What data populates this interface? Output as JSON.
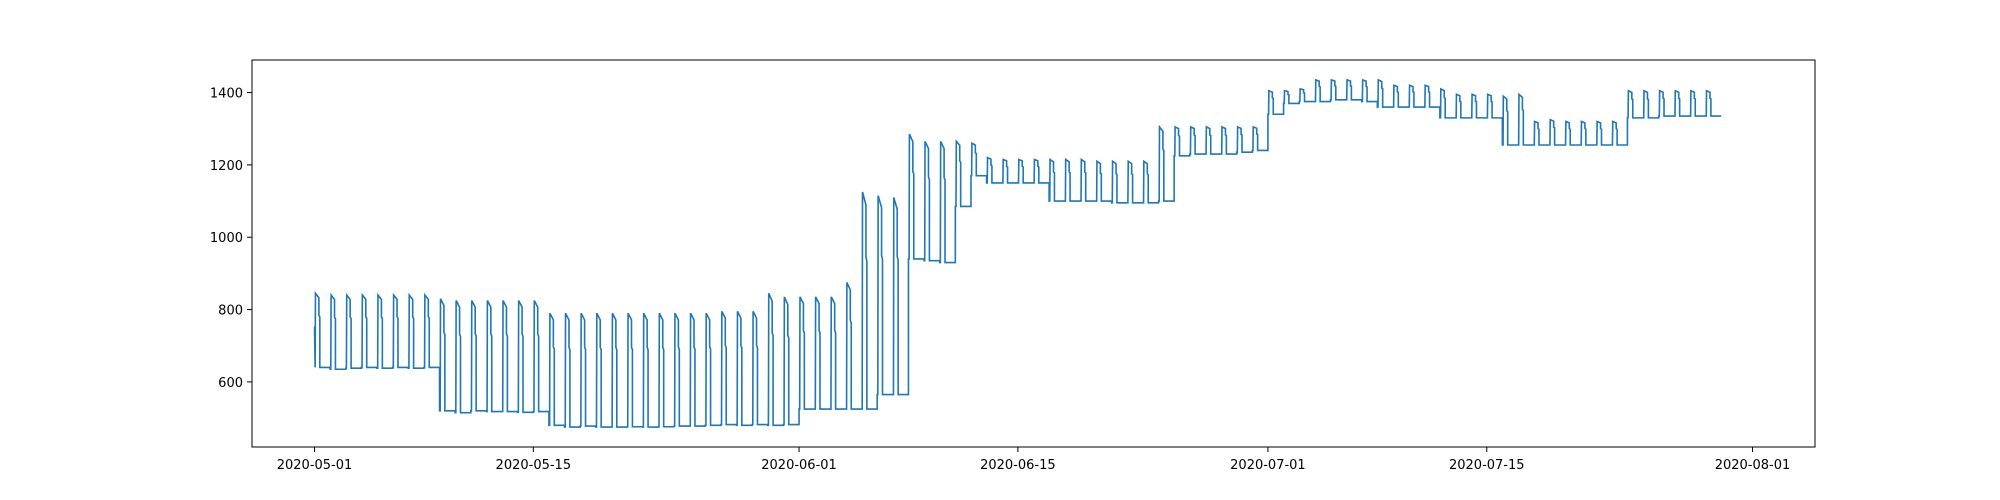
{
  "chart_data": {
    "type": "line",
    "title": "",
    "xlabel": "",
    "ylabel": "",
    "grid": false,
    "legend": "none",
    "xlim": [
      "2020-04-27",
      "2020-08-05"
    ],
    "ylim": [
      420,
      1490
    ],
    "x_ticks": [
      "2020-05-01",
      "2020-05-15",
      "2020-06-01",
      "2020-06-15",
      "2020-07-01",
      "2020-07-15",
      "2020-08-01"
    ],
    "y_ticks": [
      600,
      800,
      1000,
      1200,
      1400
    ],
    "series": [
      {
        "color": "#1f77b4",
        "x": [
          "2020-05-01",
          "2020-05-02",
          "2020-05-03",
          "2020-05-04",
          "2020-05-05",
          "2020-05-06",
          "2020-05-07",
          "2020-05-08",
          "2020-05-09",
          "2020-05-10",
          "2020-05-11",
          "2020-05-12",
          "2020-05-13",
          "2020-05-14",
          "2020-05-15",
          "2020-05-16",
          "2020-05-17",
          "2020-05-18",
          "2020-05-19",
          "2020-05-20",
          "2020-05-21",
          "2020-05-22",
          "2020-05-23",
          "2020-05-24",
          "2020-05-25",
          "2020-05-26",
          "2020-05-27",
          "2020-05-28",
          "2020-05-29",
          "2020-05-30",
          "2020-05-31",
          "2020-06-01",
          "2020-06-02",
          "2020-06-03",
          "2020-06-04",
          "2020-06-05",
          "2020-06-06",
          "2020-06-07",
          "2020-06-08",
          "2020-06-09",
          "2020-06-10",
          "2020-06-11",
          "2020-06-12",
          "2020-06-13",
          "2020-06-14",
          "2020-06-15",
          "2020-06-16",
          "2020-06-17",
          "2020-06-18",
          "2020-06-19",
          "2020-06-20",
          "2020-06-21",
          "2020-06-22",
          "2020-06-23",
          "2020-06-24",
          "2020-06-25",
          "2020-06-26",
          "2020-06-27",
          "2020-06-28",
          "2020-06-29",
          "2020-06-30",
          "2020-07-01",
          "2020-07-02",
          "2020-07-03",
          "2020-07-04",
          "2020-07-05",
          "2020-07-06",
          "2020-07-07",
          "2020-07-08",
          "2020-07-09",
          "2020-07-10",
          "2020-07-11",
          "2020-07-12",
          "2020-07-13",
          "2020-07-14",
          "2020-07-15",
          "2020-07-16",
          "2020-07-17",
          "2020-07-18",
          "2020-07-19",
          "2020-07-20",
          "2020-07-21",
          "2020-07-22",
          "2020-07-23",
          "2020-07-24",
          "2020-07-25",
          "2020-07-26",
          "2020-07-27",
          "2020-07-28",
          "2020-07-29"
        ],
        "low": [
          640,
          635,
          638,
          640,
          638,
          640,
          638,
          640,
          520,
          515,
          520,
          518,
          518,
          516,
          518,
          480,
          475,
          478,
          475,
          475,
          476,
          475,
          476,
          478,
          478,
          480,
          482,
          480,
          482,
          480,
          482,
          525,
          525,
          525,
          525,
          525,
          565,
          565,
          940,
          935,
          930,
          1085,
          1170,
          1150,
          1150,
          1150,
          1150,
          1100,
          1100,
          1100,
          1100,
          1095,
          1095,
          1095,
          1100,
          1225,
          1230,
          1230,
          1230,
          1235,
          1240,
          1340,
          1370,
          1375,
          1375,
          1380,
          1380,
          1375,
          1360,
          1360,
          1360,
          1360,
          1330,
          1330,
          1330,
          1330,
          1255,
          1255,
          1255,
          1255,
          1255,
          1255,
          1255,
          1255,
          1330,
          1330,
          1335,
          1335,
          1335,
          1335
        ],
        "peak": [
          845,
          840,
          840,
          840,
          840,
          840,
          840,
          840,
          830,
          825,
          825,
          825,
          825,
          825,
          825,
          790,
          790,
          790,
          790,
          790,
          790,
          790,
          790,
          790,
          790,
          790,
          795,
          795,
          795,
          845,
          835,
          835,
          835,
          835,
          875,
          1125,
          1115,
          1110,
          1285,
          1265,
          1265,
          1265,
          1260,
          1220,
          1215,
          1215,
          1215,
          1215,
          1215,
          1215,
          1210,
          1210,
          1210,
          1210,
          1305,
          1305,
          1305,
          1305,
          1305,
          1305,
          1305,
          1405,
          1405,
          1410,
          1435,
          1435,
          1435,
          1435,
          1435,
          1420,
          1420,
          1420,
          1410,
          1395,
          1395,
          1395,
          1390,
          1395,
          1320,
          1325,
          1320,
          1320,
          1320,
          1320,
          1405,
          1405,
          1405,
          1405,
          1405,
          1405
        ]
      }
    ]
  }
}
